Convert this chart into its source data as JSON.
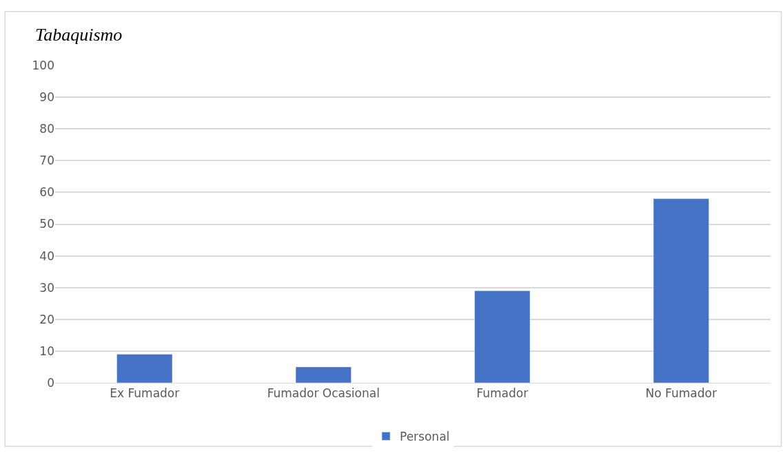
{
  "chart_data": {
    "type": "bar",
    "title": "Tabaquismo",
    "categories": [
      "Ex Fumador",
      "Fumador Ocasional",
      "Fumador",
      "No Fumador"
    ],
    "series": [
      {
        "name": "Personal",
        "color": "#4472c4",
        "values": [
          9,
          5,
          29,
          58
        ]
      }
    ],
    "ylim": [
      0,
      100
    ],
    "yticks": [
      0,
      10,
      20,
      30,
      40,
      50,
      60,
      70,
      80,
      90,
      100
    ],
    "grid": "y",
    "legend": "bottom"
  }
}
